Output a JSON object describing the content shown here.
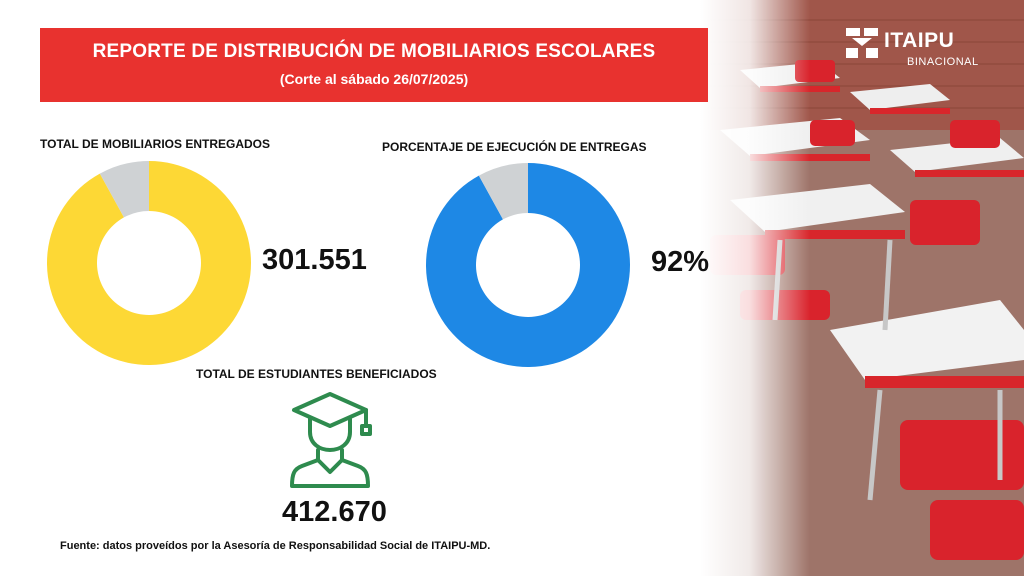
{
  "banner": {
    "title": "REPORTE DE DISTRIBUCIÓN DE MOBILIARIOS ESCOLARES",
    "subtitle": "(Corte al sábado 26/07/2025)"
  },
  "chart_data": [
    {
      "type": "pie",
      "title": "TOTAL DE MOBILIARIOS ENTREGADOS",
      "value_label": "301.551",
      "slices": [
        {
          "value": 92,
          "color": "#fdd835"
        },
        {
          "value": 8,
          "color": "#cfd2d4"
        }
      ]
    },
    {
      "type": "pie",
      "title": "PORCENTAJE DE EJECUCIÓN DE ENTREGAS",
      "value_label": "92%",
      "slices": [
        {
          "value": 92,
          "color": "#1e88e5"
        },
        {
          "value": 8,
          "color": "#cfd2d4"
        }
      ]
    }
  ],
  "students": {
    "title": "TOTAL DE ESTUDIANTES BENEFICIADOS",
    "value": "412.670",
    "icon": "graduate-student-icon",
    "icon_color": "#2e8b4e"
  },
  "source": "Fuente: datos proveídos por la Asesoría de Responsabilidad Social de ITAIPU-MD.",
  "logo": {
    "name": "ITAIPU",
    "sub": "BINACIONAL"
  },
  "colors": {
    "banner": "#e8322f",
    "yellow": "#fdd835",
    "blue": "#1e88e5",
    "gray": "#cfd2d4",
    "green": "#2e8b4e"
  }
}
